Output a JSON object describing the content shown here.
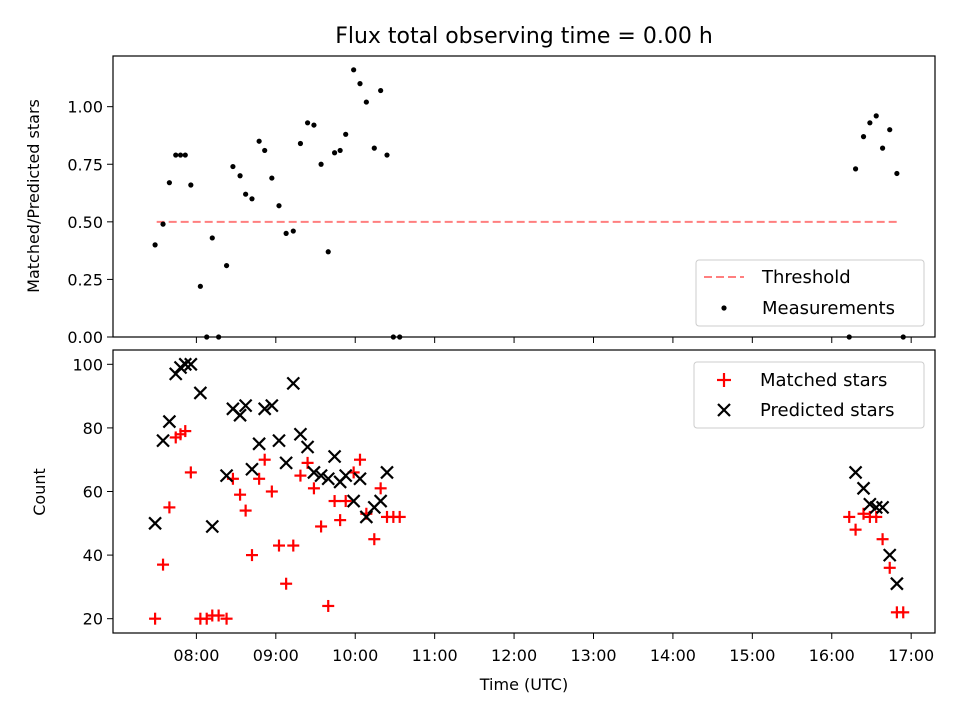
{
  "chart_data": [
    {
      "type": "scatter",
      "title": "Flux total observing time = 0.00 h",
      "ylabel": "Matched/Predicted stars",
      "ylim": [
        0,
        1.22
      ],
      "yticks": [
        "0.00",
        "0.25",
        "0.50",
        "0.75",
        "1.00"
      ],
      "ytick_values": [
        0,
        0.25,
        0.5,
        0.75,
        1.0
      ],
      "xlim": [
        6.95,
        17.3
      ],
      "legend": "lower-right",
      "threshold": {
        "name": "Threshold",
        "value": 0.5,
        "x": [
          7.5,
          16.85
        ],
        "color": "#ff7f7f"
      },
      "series": [
        {
          "name": "Measurements",
          "color": "#000000",
          "x": [
            7.48,
            7.58,
            7.66,
            7.74,
            7.8,
            7.86,
            7.93,
            8.05,
            8.13,
            8.2,
            8.28,
            8.38,
            8.46,
            8.55,
            8.62,
            8.7,
            8.79,
            8.86,
            8.95,
            9.04,
            9.13,
            9.22,
            9.31,
            9.4,
            9.48,
            9.57,
            9.66,
            9.74,
            9.81,
            9.88,
            9.98,
            10.06,
            10.14,
            10.24,
            10.32,
            10.4,
            10.48,
            10.56,
            16.22,
            16.3,
            16.4,
            16.48,
            16.56,
            16.64,
            16.73,
            16.82,
            16.9
          ],
          "y": [
            0.4,
            0.49,
            0.67,
            0.79,
            0.79,
            0.79,
            0.66,
            0.22,
            0.0,
            0.43,
            0.0,
            0.31,
            0.74,
            0.7,
            0.62,
            0.6,
            0.85,
            0.81,
            0.69,
            0.57,
            0.45,
            0.46,
            0.84,
            0.93,
            0.92,
            0.75,
            0.37,
            0.8,
            0.81,
            0.88,
            1.16,
            1.1,
            1.02,
            0.82,
            1.07,
            0.79,
            0.0,
            0.0,
            0.0,
            0.73,
            0.87,
            0.93,
            0.96,
            0.82,
            0.9,
            0.71,
            0.0
          ]
        }
      ]
    },
    {
      "type": "scatter",
      "xlabel": "Time (UTC)",
      "ylabel": "Count",
      "ylim": [
        15.5,
        104.5
      ],
      "yticks": [
        "20",
        "40",
        "60",
        "80",
        "100"
      ],
      "ytick_values": [
        20,
        40,
        60,
        80,
        100
      ],
      "xlim": [
        6.95,
        17.3
      ],
      "xticks": [
        "08:00",
        "09:00",
        "10:00",
        "11:00",
        "12:00",
        "13:00",
        "14:00",
        "15:00",
        "16:00",
        "17:00"
      ],
      "xtick_values": [
        8,
        9,
        10,
        11,
        12,
        13,
        14,
        15,
        16,
        17
      ],
      "legend": "top-right",
      "series": [
        {
          "name": "Matched stars",
          "marker": "plus",
          "color": "#ff0000",
          "x": [
            7.48,
            7.58,
            7.66,
            7.74,
            7.8,
            7.86,
            7.93,
            8.05,
            8.13,
            8.2,
            8.28,
            8.38,
            8.46,
            8.55,
            8.62,
            8.7,
            8.79,
            8.86,
            8.95,
            9.04,
            9.13,
            9.22,
            9.31,
            9.4,
            9.48,
            9.57,
            9.66,
            9.74,
            9.81,
            9.88,
            9.98,
            10.06,
            10.14,
            10.24,
            10.32,
            10.4,
            10.48,
            10.56,
            16.22,
            16.3,
            16.4,
            16.48,
            16.56,
            16.64,
            16.73,
            16.82,
            16.9
          ],
          "y": [
            20,
            37,
            55,
            77,
            78,
            79,
            66,
            20,
            20,
            21,
            21,
            20,
            64,
            59,
            54,
            40,
            64,
            70,
            60,
            43,
            31,
            43,
            65,
            69,
            61,
            49,
            24,
            57,
            51,
            57,
            66,
            70,
            53,
            45,
            61,
            52,
            52,
            52,
            52,
            48,
            53,
            52,
            52,
            45,
            36,
            22,
            22
          ]
        },
        {
          "name": "Predicted stars",
          "marker": "x",
          "color": "#000000",
          "x": [
            7.48,
            7.58,
            7.66,
            7.74,
            7.8,
            7.86,
            7.93,
            8.05,
            8.2,
            8.38,
            8.46,
            8.55,
            8.62,
            8.7,
            8.79,
            8.86,
            8.95,
            9.04,
            9.13,
            9.22,
            9.31,
            9.4,
            9.48,
            9.57,
            9.66,
            9.74,
            9.81,
            9.88,
            9.98,
            10.06,
            10.14,
            10.24,
            10.32,
            10.4,
            16.3,
            16.4,
            16.48,
            16.56,
            16.64,
            16.73,
            16.82
          ],
          "y": [
            50,
            76,
            82,
            97,
            99,
            100,
            100,
            91,
            49,
            65,
            86,
            84,
            87,
            67,
            75,
            86,
            87,
            76,
            69,
            94,
            78,
            74,
            66,
            65,
            64,
            71,
            63,
            65,
            57,
            64,
            52,
            55,
            57,
            66,
            66,
            61,
            56,
            55,
            55,
            40,
            31
          ]
        }
      ]
    }
  ]
}
